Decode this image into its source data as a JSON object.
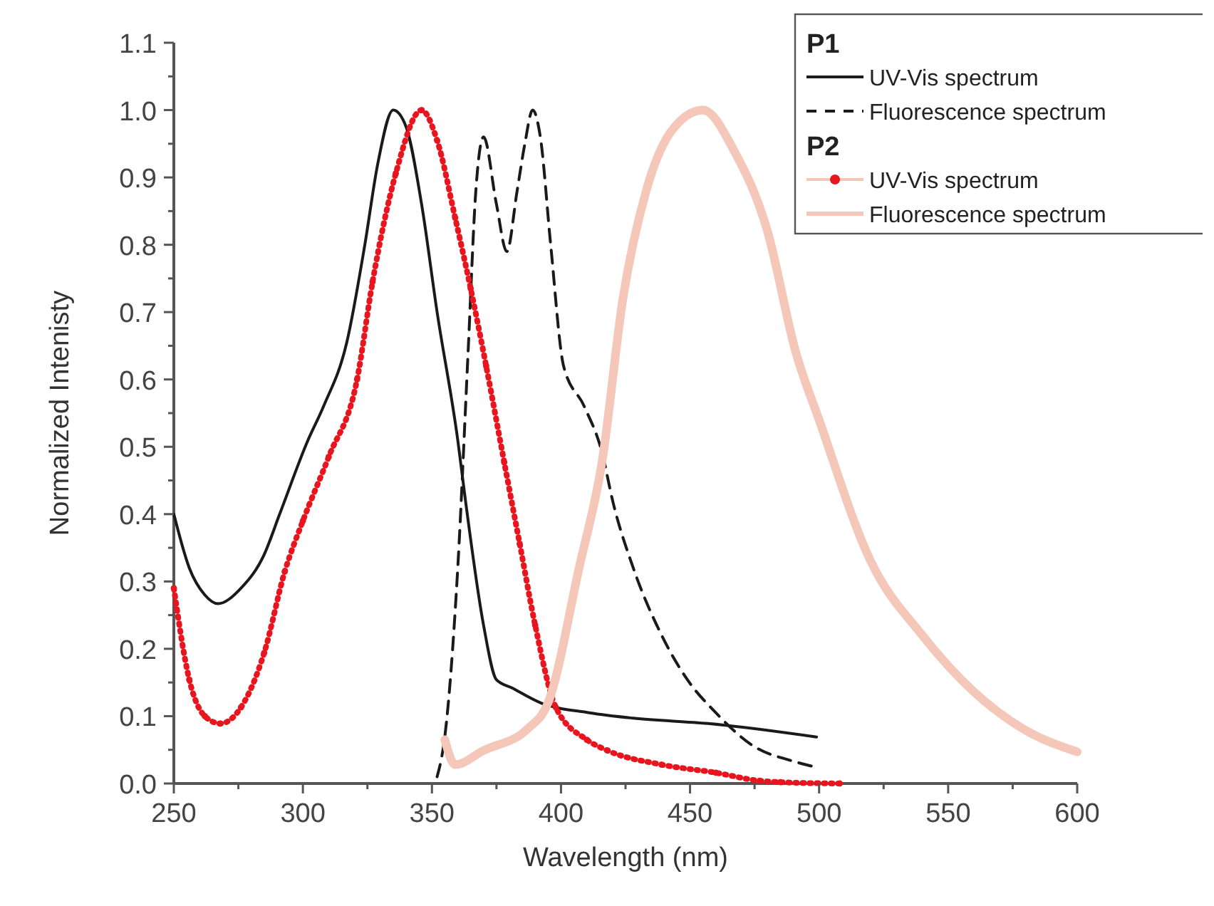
{
  "chart_data": {
    "type": "line",
    "xlabel": "Wavelength (nm)",
    "ylabel": "Normalized Intenisty",
    "xlim": [
      250,
      600
    ],
    "ylim": [
      0,
      1.1
    ],
    "xticks": [
      250,
      300,
      350,
      400,
      450,
      500,
      550,
      600
    ],
    "yticks": [
      {
        "value": 0,
        "label": "0.0"
      },
      0.1,
      0.2,
      0.3,
      0.4,
      0.5,
      0.6,
      0.7,
      0.8,
      0.9,
      {
        "value": 1,
        "label": "1.0"
      },
      1.1
    ],
    "annotations": [
      "P1",
      "P2"
    ],
    "grid": false,
    "legend": "top right",
    "series": [
      {
        "name": "UV-Vis spectrum",
        "color": "#1a1a1a",
        "line_style": "solid",
        "marker": "none",
        "x": [
          250,
          256,
          262,
          267,
          276,
          285,
          291,
          302,
          308,
          317,
          324,
          329,
          335,
          340,
          346,
          352,
          360,
          363,
          370,
          375,
          381,
          392,
          411,
          428,
          457,
          499
        ],
        "values": [
          0.4,
          0.32,
          0.28,
          0.267,
          0.29,
          0.34,
          0.4,
          0.51,
          0.56,
          0.655,
          0.8,
          0.92,
          1.0,
          0.975,
          0.86,
          0.7,
          0.51,
          0.42,
          0.235,
          0.154,
          0.142,
          0.12,
          0.105,
          0.097,
          0.089,
          0.069
        ]
      },
      {
        "name": "Fluorescence spectrum",
        "color": "#1a1a1a",
        "line_style": "dashed",
        "marker": "none",
        "x": [
          352,
          355,
          360,
          364,
          367,
          370,
          375,
          379,
          383,
          386,
          389,
          392,
          396,
          401,
          409,
          416,
          420,
          428,
          439,
          449,
          460,
          474,
          491,
          499
        ],
        "values": [
          0.01,
          0.07,
          0.32,
          0.64,
          0.88,
          0.96,
          0.86,
          0.79,
          0.88,
          0.95,
          1.0,
          0.96,
          0.8,
          0.62,
          0.56,
          0.49,
          0.42,
          0.32,
          0.22,
          0.154,
          0.105,
          0.057,
          0.032,
          0.024
        ]
      },
      {
        "name": "UV-Vis spectrum",
        "color": "#e8141e",
        "line_style": "dotted",
        "marker": "circle",
        "x": [
          250,
          256,
          262,
          268,
          276,
          285,
          293,
          300,
          310,
          321,
          327,
          336,
          346,
          352,
          359,
          365,
          371,
          378,
          384,
          390,
          398,
          410,
          418,
          439,
          460,
          477,
          485,
          508
        ],
        "values": [
          0.29,
          0.154,
          0.1,
          0.089,
          0.113,
          0.194,
          0.315,
          0.39,
          0.485,
          0.6,
          0.745,
          0.906,
          1.0,
          0.955,
          0.84,
          0.735,
          0.62,
          0.477,
          0.356,
          0.235,
          0.113,
          0.065,
          0.049,
          0.028,
          0.016,
          0.004,
          0.002,
          0.0
        ]
      },
      {
        "name": "Fluorescence spectrum",
        "color": "#f4c7b8",
        "line_style": "solid",
        "marker": "none",
        "x": [
          355,
          359,
          370,
          387,
          395,
          407,
          416,
          424,
          433,
          443,
          455,
          467,
          480,
          491,
          500,
          520,
          540,
          560,
          580,
          600
        ],
        "values": [
          0.065,
          0.028,
          0.049,
          0.081,
          0.12,
          0.32,
          0.48,
          0.72,
          0.88,
          0.97,
          1.0,
          0.94,
          0.82,
          0.64,
          0.54,
          0.33,
          0.22,
          0.136,
          0.079,
          0.047
        ]
      }
    ]
  }
}
